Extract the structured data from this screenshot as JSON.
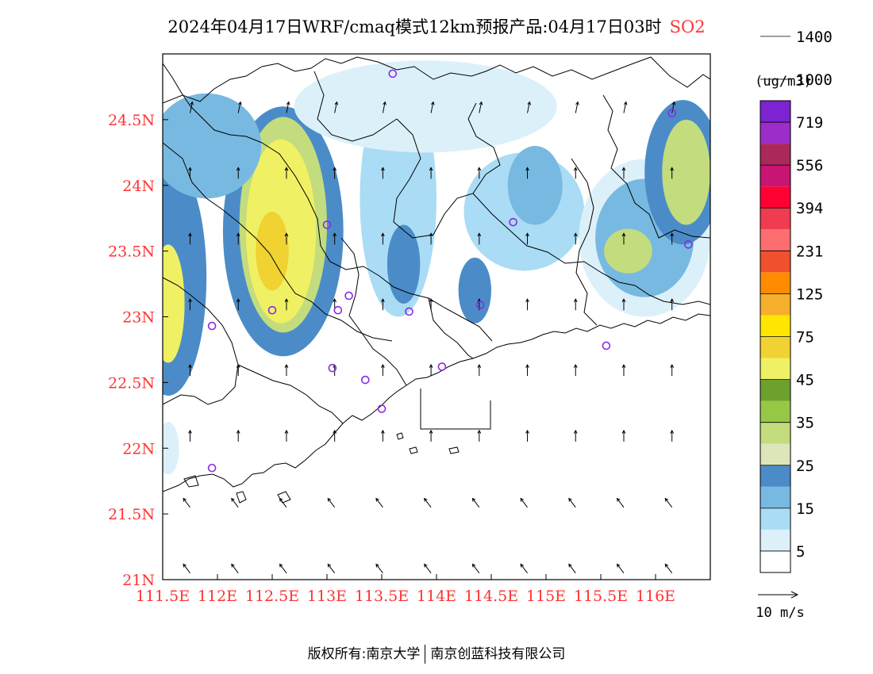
{
  "title": {
    "main": "2024年04月17日WRF/cmaq模式12km预报产品:04月17日03时",
    "species": "SO2"
  },
  "colors": {
    "axis_label": "#ff3333",
    "line": "#000000"
  },
  "map": {
    "lon_range": [
      111.5,
      116.5
    ],
    "lat_range": [
      21.0,
      25.0
    ],
    "lon_ticks": [
      "111.5E",
      "112E",
      "112.5E",
      "113E",
      "113.5E",
      "114E",
      "114.5E",
      "115E",
      "115.5E",
      "116E"
    ],
    "lat_ticks": [
      "21N",
      "21.5N",
      "22N",
      "22.5N",
      "23N",
      "23.5N",
      "24N",
      "24.5N"
    ],
    "stations": [
      {
        "lon": 113.6,
        "lat": 24.85
      },
      {
        "lon": 116.15,
        "lat": 24.55
      },
      {
        "lon": 113.0,
        "lat": 23.7
      },
      {
        "lon": 114.7,
        "lat": 23.72
      },
      {
        "lon": 116.3,
        "lat": 23.55
      },
      {
        "lon": 112.5,
        "lat": 23.05
      },
      {
        "lon": 111.95,
        "lat": 22.93
      },
      {
        "lon": 113.1,
        "lat": 23.05
      },
      {
        "lon": 113.2,
        "lat": 23.16
      },
      {
        "lon": 113.75,
        "lat": 23.04
      },
      {
        "lon": 114.4,
        "lat": 23.09
      },
      {
        "lon": 115.55,
        "lat": 22.78
      },
      {
        "lon": 113.05,
        "lat": 22.61
      },
      {
        "lon": 113.35,
        "lat": 22.52
      },
      {
        "lon": 114.05,
        "lat": 22.62
      },
      {
        "lon": 113.5,
        "lat": 22.3
      },
      {
        "lon": 111.95,
        "lat": 21.85
      }
    ],
    "pollution_areas": [
      {
        "name": "west-plume",
        "level": 4,
        "center": [
          111.55,
          23.3
        ],
        "r": [
          0.35,
          0.9
        ]
      },
      {
        "name": "west-plume-core",
        "level": 9,
        "center": [
          111.55,
          23.1
        ],
        "r": [
          0.15,
          0.45
        ]
      },
      {
        "name": "main-plume",
        "level": 4,
        "center": [
          112.6,
          23.65
        ],
        "r": [
          0.55,
          0.95
        ]
      },
      {
        "name": "main-plume-mid",
        "level": 6,
        "center": [
          112.6,
          23.7
        ],
        "r": [
          0.4,
          0.82
        ]
      },
      {
        "name": "main-plume-inner",
        "level": 9,
        "center": [
          112.58,
          23.65
        ],
        "r": [
          0.32,
          0.7
        ]
      },
      {
        "name": "main-plume-core",
        "level": 10,
        "center": [
          112.5,
          23.5
        ],
        "r": [
          0.15,
          0.3
        ]
      },
      {
        "name": "north-west-band",
        "level": 3,
        "center": [
          111.9,
          24.3
        ],
        "r": [
          0.5,
          0.4
        ]
      },
      {
        "name": "central-strip",
        "level": 2,
        "center": [
          113.65,
          23.9
        ],
        "r": [
          0.35,
          0.9
        ]
      },
      {
        "name": "central-strip-core",
        "level": 4,
        "center": [
          113.7,
          23.4
        ],
        "r": [
          0.15,
          0.3
        ]
      },
      {
        "name": "north-center",
        "level": 1,
        "center": [
          113.9,
          24.6
        ],
        "r": [
          1.2,
          0.35
        ]
      },
      {
        "name": "mid-east-band",
        "level": 2,
        "center": [
          114.8,
          23.8
        ],
        "r": [
          0.55,
          0.45
        ]
      },
      {
        "name": "mid-east-core",
        "level": 3,
        "center": [
          114.9,
          24.0
        ],
        "r": [
          0.25,
          0.3
        ]
      },
      {
        "name": "south-east-core",
        "level": 4,
        "center": [
          114.35,
          23.2
        ],
        "r": [
          0.15,
          0.25
        ]
      },
      {
        "name": "east-plume",
        "level": 1,
        "center": [
          115.9,
          23.6
        ],
        "r": [
          0.6,
          0.6
        ]
      },
      {
        "name": "east-plume-mid",
        "level": 3,
        "center": [
          115.9,
          23.6
        ],
        "r": [
          0.45,
          0.45
        ]
      },
      {
        "name": "east-plume-core",
        "level": 6,
        "center": [
          115.75,
          23.5
        ],
        "r": [
          0.22,
          0.17
        ]
      },
      {
        "name": "northeast-plume",
        "level": 4,
        "center": [
          116.25,
          24.1
        ],
        "r": [
          0.35,
          0.55
        ]
      },
      {
        "name": "northeast-core",
        "level": 6,
        "center": [
          116.28,
          24.1
        ],
        "r": [
          0.22,
          0.4
        ]
      },
      {
        "name": "southwest-spot",
        "level": 1,
        "center": [
          111.55,
          22.0
        ],
        "r": [
          0.1,
          0.2
        ]
      }
    ]
  },
  "legend": {
    "unit": "(ug/m3)",
    "colors": [
      "#ffffff",
      "#dcf0fa",
      "#aadcf5",
      "#78b9e1",
      "#4b8cc8",
      "#dce6b9",
      "#c3dc7d",
      "#96c846",
      "#6ea02d",
      "#f0f064",
      "#f0d232",
      "#ffe600",
      "#f5af2d",
      "#ff8c00",
      "#f0502d",
      "#ff6e6e",
      "#f03c50",
      "#ff0032",
      "#c81473",
      "#aa285a",
      "#9b2dc8",
      "#7d23d2"
    ],
    "labels": [
      "5",
      "15",
      "25",
      "35",
      "45",
      "75",
      "125",
      "231",
      "394",
      "556",
      "719",
      "1000",
      "1400"
    ],
    "wind_scale": "10 m/s"
  },
  "footer": {
    "copyright": "版权所有:南京大学",
    "company": "南京创蓝科技有限公司"
  }
}
